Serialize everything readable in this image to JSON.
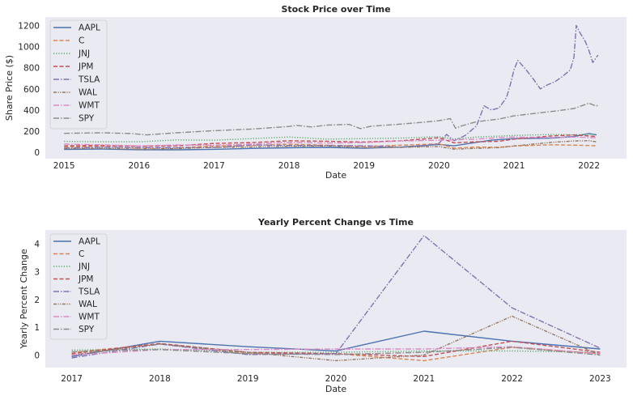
{
  "chart_data": [
    {
      "type": "line",
      "title": "Stock Price over Time",
      "xlabel": "Date",
      "ylabel": "Share Price ($)",
      "x_ticks": [
        "2015",
        "2016",
        "2017",
        "2018",
        "2019",
        "2020",
        "2021",
        "2022"
      ],
      "y_ticks": [
        "0",
        "200",
        "400",
        "600",
        "800",
        "1000",
        "1200"
      ],
      "xlim": [
        2014.75,
        2022.5
      ],
      "ylim": [
        -60,
        1280
      ],
      "grid": false,
      "legend": "top-left",
      "series": [
        {
          "name": "AAPL",
          "color": "#4c72b0",
          "dash": "solid",
          "points": [
            [
              2015.0,
              27
            ],
            [
              2015.5,
              32
            ],
            [
              2016.0,
              25
            ],
            [
              2016.5,
              24
            ],
            [
              2017.0,
              29
            ],
            [
              2017.5,
              37
            ],
            [
              2018.0,
              43
            ],
            [
              2018.5,
              47
            ],
            [
              2019.0,
              39
            ],
            [
              2019.5,
              50
            ],
            [
              2020.0,
              75
            ],
            [
              2020.2,
              62
            ],
            [
              2020.5,
              95
            ],
            [
              2020.7,
              115
            ],
            [
              2021.0,
              130
            ],
            [
              2021.5,
              135
            ],
            [
              2021.8,
              150
            ],
            [
              2022.0,
              178
            ],
            [
              2022.1,
              165
            ]
          ]
        },
        {
          "name": "C",
          "color": "#dd8452",
          "dash": "dashed",
          "points": [
            [
              2015.0,
              52
            ],
            [
              2015.5,
              55
            ],
            [
              2016.0,
              40
            ],
            [
              2016.5,
              42
            ],
            [
              2017.0,
              60
            ],
            [
              2017.5,
              65
            ],
            [
              2018.0,
              77
            ],
            [
              2018.5,
              68
            ],
            [
              2019.0,
              55
            ],
            [
              2019.5,
              68
            ],
            [
              2020.0,
              80
            ],
            [
              2020.2,
              40
            ],
            [
              2020.5,
              50
            ],
            [
              2020.8,
              48
            ],
            [
              2021.0,
              60
            ],
            [
              2021.5,
              72
            ],
            [
              2021.8,
              68
            ],
            [
              2022.0,
              65
            ],
            [
              2022.1,
              62
            ]
          ]
        },
        {
          "name": "JNJ",
          "color": "#55a868",
          "dash": "dotted",
          "points": [
            [
              2015.0,
              104
            ],
            [
              2015.5,
              100
            ],
            [
              2016.0,
              100
            ],
            [
              2016.5,
              118
            ],
            [
              2017.0,
              115
            ],
            [
              2017.5,
              130
            ],
            [
              2018.0,
              145
            ],
            [
              2018.5,
              125
            ],
            [
              2019.0,
              130
            ],
            [
              2019.5,
              135
            ],
            [
              2020.0,
              148
            ],
            [
              2020.2,
              125
            ],
            [
              2020.5,
              145
            ],
            [
              2021.0,
              160
            ],
            [
              2021.5,
              170
            ],
            [
              2021.8,
              165
            ],
            [
              2022.0,
              172
            ],
            [
              2022.1,
              170
            ]
          ]
        },
        {
          "name": "JPM",
          "color": "#c44e52",
          "dash": "dashed",
          "points": [
            [
              2015.0,
              62
            ],
            [
              2015.5,
              66
            ],
            [
              2016.0,
              58
            ],
            [
              2016.5,
              62
            ],
            [
              2017.0,
              85
            ],
            [
              2017.5,
              92
            ],
            [
              2018.0,
              110
            ],
            [
              2018.5,
              105
            ],
            [
              2019.0,
              98
            ],
            [
              2019.5,
              110
            ],
            [
              2020.0,
              138
            ],
            [
              2020.2,
              90
            ],
            [
              2020.5,
              100
            ],
            [
              2020.8,
              105
            ],
            [
              2021.0,
              125
            ],
            [
              2021.5,
              155
            ],
            [
              2021.8,
              165
            ],
            [
              2022.0,
              155
            ],
            [
              2022.1,
              150
            ]
          ]
        },
        {
          "name": "TSLA",
          "color": "#8172b3",
          "dash": "dashdot",
          "points": [
            [
              2015.0,
              40
            ],
            [
              2015.5,
              50
            ],
            [
              2016.0,
              45
            ],
            [
              2016.5,
              44
            ],
            [
              2017.0,
              45
            ],
            [
              2017.5,
              70
            ],
            [
              2018.0,
              65
            ],
            [
              2018.5,
              65
            ],
            [
              2019.0,
              62
            ],
            [
              2019.3,
              55
            ],
            [
              2019.5,
              48
            ],
            [
              2019.8,
              60
            ],
            [
              2020.0,
              85
            ],
            [
              2020.1,
              170
            ],
            [
              2020.2,
              110
            ],
            [
              2020.35,
              160
            ],
            [
              2020.5,
              250
            ],
            [
              2020.6,
              440
            ],
            [
              2020.7,
              400
            ],
            [
              2020.8,
              420
            ],
            [
              2020.9,
              520
            ],
            [
              2020.95,
              640
            ],
            [
              2021.0,
              780
            ],
            [
              2021.05,
              870
            ],
            [
              2021.15,
              790
            ],
            [
              2021.25,
              700
            ],
            [
              2021.35,
              600
            ],
            [
              2021.45,
              640
            ],
            [
              2021.55,
              670
            ],
            [
              2021.65,
              720
            ],
            [
              2021.75,
              780
            ],
            [
              2021.8,
              900
            ],
            [
              2021.83,
              1200
            ],
            [
              2021.88,
              1130
            ],
            [
              2021.95,
              1050
            ],
            [
              2022.0,
              960
            ],
            [
              2022.05,
              850
            ],
            [
              2022.1,
              900
            ],
            [
              2022.12,
              920
            ]
          ]
        },
        {
          "name": "WAL",
          "color": "#937860",
          "dash": "dashdotdot",
          "points": [
            [
              2015.0,
              35
            ],
            [
              2015.5,
              38
            ],
            [
              2016.0,
              30
            ],
            [
              2016.5,
              35
            ],
            [
              2017.0,
              48
            ],
            [
              2017.5,
              50
            ],
            [
              2018.0,
              58
            ],
            [
              2018.5,
              60
            ],
            [
              2019.0,
              45
            ],
            [
              2019.5,
              48
            ],
            [
              2020.0,
              55
            ],
            [
              2020.2,
              30
            ],
            [
              2020.5,
              38
            ],
            [
              2020.8,
              45
            ],
            [
              2021.0,
              60
            ],
            [
              2021.5,
              95
            ],
            [
              2021.8,
              108
            ],
            [
              2022.0,
              110
            ],
            [
              2022.1,
              100
            ]
          ]
        },
        {
          "name": "WMT",
          "color": "#da8bc3",
          "dash": "dashdot",
          "points": [
            [
              2015.0,
              78
            ],
            [
              2015.5,
              72
            ],
            [
              2016.0,
              60
            ],
            [
              2016.5,
              70
            ],
            [
              2017.0,
              68
            ],
            [
              2017.5,
              78
            ],
            [
              2018.0,
              95
            ],
            [
              2018.5,
              88
            ],
            [
              2019.0,
              92
            ],
            [
              2019.5,
              108
            ],
            [
              2020.0,
              115
            ],
            [
              2020.2,
              118
            ],
            [
              2020.5,
              125
            ],
            [
              2020.8,
              140
            ],
            [
              2021.0,
              145
            ],
            [
              2021.5,
              140
            ],
            [
              2021.8,
              145
            ],
            [
              2022.0,
              140
            ],
            [
              2022.1,
              138
            ]
          ]
        },
        {
          "name": "SPY",
          "color": "#8c8c8c",
          "dash": "dashdot",
          "points": [
            [
              2015.0,
              180
            ],
            [
              2015.5,
              185
            ],
            [
              2015.9,
              178
            ],
            [
              2016.1,
              165
            ],
            [
              2016.5,
              185
            ],
            [
              2017.0,
              205
            ],
            [
              2017.5,
              220
            ],
            [
              2018.0,
              245
            ],
            [
              2018.1,
              255
            ],
            [
              2018.3,
              240
            ],
            [
              2018.5,
              258
            ],
            [
              2018.8,
              265
            ],
            [
              2018.95,
              225
            ],
            [
              2019.1,
              248
            ],
            [
              2019.5,
              268
            ],
            [
              2019.8,
              285
            ],
            [
              2020.0,
              300
            ],
            [
              2020.15,
              320
            ],
            [
              2020.22,
              228
            ],
            [
              2020.3,
              250
            ],
            [
              2020.5,
              290
            ],
            [
              2020.8,
              315
            ],
            [
              2021.0,
              345
            ],
            [
              2021.3,
              370
            ],
            [
              2021.6,
              395
            ],
            [
              2021.8,
              415
            ],
            [
              2021.9,
              440
            ],
            [
              2022.0,
              465
            ],
            [
              2022.05,
              450
            ],
            [
              2022.1,
              440
            ],
            [
              2022.12,
              445
            ]
          ]
        }
      ]
    },
    {
      "type": "line",
      "title": "Yearly Percent Change vs Time",
      "xlabel": "Date",
      "ylabel": "Yearly Percent Change",
      "x_ticks": [
        "2017",
        "2018",
        "2019",
        "2020",
        "2021",
        "2022",
        "2023"
      ],
      "y_ticks": [
        "0",
        "1",
        "2",
        "3",
        "4"
      ],
      "xlim": [
        2016.7,
        2023.3
      ],
      "ylim": [
        -0.45,
        4.5
      ],
      "grid": false,
      "legend": "top-left",
      "series": [
        {
          "name": "AAPL",
          "color": "#4c72b0",
          "dash": "solid",
          "x": [
            2017,
            2018,
            2019,
            2020,
            2021,
            2022,
            2023
          ],
          "values": [
            -0.05,
            0.5,
            0.3,
            0.15,
            0.86,
            0.5,
            0.22
          ]
        },
        {
          "name": "C",
          "color": "#dd8452",
          "dash": "dashed",
          "x": [
            2017,
            2018,
            2019,
            2020,
            2021,
            2022,
            2023
          ],
          "values": [
            0.1,
            0.4,
            0.05,
            0.05,
            -0.2,
            0.28,
            0.05
          ]
        },
        {
          "name": "JNJ",
          "color": "#55a868",
          "dash": "dotted",
          "x": [
            2017,
            2018,
            2019,
            2020,
            2021,
            2022,
            2023
          ],
          "values": [
            0.18,
            0.22,
            0.1,
            0.1,
            0.15,
            0.15,
            0.1
          ]
        },
        {
          "name": "JPM",
          "color": "#c44e52",
          "dash": "dashed",
          "x": [
            2017,
            2018,
            2019,
            2020,
            2021,
            2022,
            2023
          ],
          "values": [
            0.05,
            0.42,
            0.1,
            0.05,
            -0.05,
            0.5,
            0.1
          ]
        },
        {
          "name": "TSLA",
          "color": "#8172b3",
          "dash": "dashdot",
          "x": [
            2017,
            2018,
            2019,
            2020,
            2021,
            2022,
            2023
          ],
          "values": [
            -0.1,
            0.4,
            0.02,
            0.05,
            4.3,
            1.7,
            0.25
          ]
        },
        {
          "name": "WAL",
          "color": "#937860",
          "dash": "dashdotdot",
          "x": [
            2017,
            2018,
            2019,
            2020,
            2021,
            2022,
            2023
          ],
          "values": [
            0.0,
            0.4,
            0.1,
            -0.2,
            0.0,
            1.4,
            0.0
          ]
        },
        {
          "name": "WMT",
          "color": "#da8bc3",
          "dash": "dashdot",
          "x": [
            2017,
            2018,
            2019,
            2020,
            2021,
            2022,
            2023
          ],
          "values": [
            0.0,
            0.2,
            0.2,
            0.22,
            0.22,
            0.3,
            0.05
          ]
        },
        {
          "name": "SPY",
          "color": "#8c8c8c",
          "dash": "dashdot",
          "x": [
            2017,
            2018,
            2019,
            2020,
            2021,
            2022,
            2023
          ],
          "values": [
            0.12,
            0.2,
            0.05,
            0.02,
            0.1,
            0.28,
            0.0
          ]
        }
      ]
    }
  ]
}
